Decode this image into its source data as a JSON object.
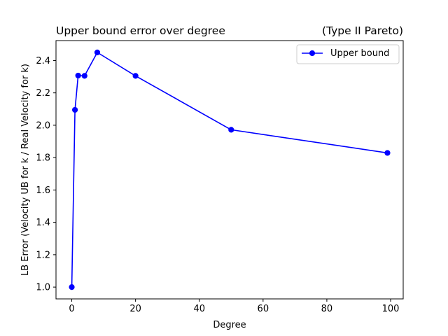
{
  "chart_data": {
    "type": "line",
    "title_left": "Upper bound error over degree",
    "title_right": "(Type II Pareto)",
    "xlabel": "Degree",
    "ylabel": "LB Error (Velocity UB for k / Real Velocity for k)",
    "xlim": [
      -4.95,
      103.95
    ],
    "ylim": [
      0.927,
      2.523
    ],
    "xticks": [
      0,
      20,
      40,
      60,
      80,
      100
    ],
    "yticks": [
      1.0,
      1.2,
      1.4,
      1.6,
      1.8,
      2.0,
      2.2,
      2.4
    ],
    "ytick_labels": [
      "1.0",
      "1.2",
      "1.4",
      "1.6",
      "1.8",
      "2.0",
      "2.2",
      "2.4"
    ],
    "grid": false,
    "legend_position": "upper-right",
    "series": [
      {
        "name": "Upper bound",
        "color": "#0000ff",
        "marker": "circle",
        "x": [
          0,
          1,
          2,
          4,
          8,
          20,
          50,
          99
        ],
        "y": [
          1.0,
          2.095,
          2.307,
          2.305,
          2.45,
          2.305,
          1.972,
          1.829
        ]
      }
    ]
  }
}
